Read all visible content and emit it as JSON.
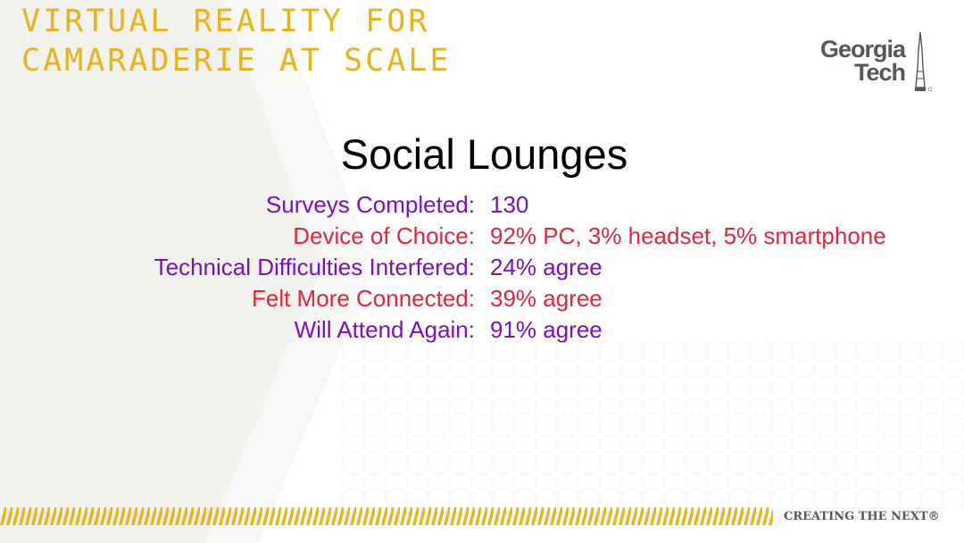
{
  "header": {
    "title_line1": "VIRTUAL REALITY FOR",
    "title_line2": "CAMARADERIE AT SCALE"
  },
  "logo": {
    "line1": "Georgia",
    "line2": "Tech",
    "icon": "tech-tower-icon"
  },
  "slide": {
    "title": "Social Lounges"
  },
  "stats": [
    {
      "label": "Surveys Completed:",
      "value": "130",
      "color": "#7b10c0"
    },
    {
      "label": "Device of Choice:",
      "value": "92% PC, 3% headset, 5% smartphone",
      "color": "#e0273b"
    },
    {
      "label": "Technical Difficulties Interfered:",
      "value": "24% agree",
      "color": "#7b10c0"
    },
    {
      "label": "Felt More Connected:",
      "value": "39% agree",
      "color": "#e0273b"
    },
    {
      "label": "Will Attend Again:",
      "value": "91% agree",
      "color": "#7b10c0"
    }
  ],
  "footer": {
    "tagline": "CREATING THE NEXT®"
  },
  "colors": {
    "accent_gold": "#e8b41c",
    "logo_gray": "#54585a",
    "purple": "#7b10c0",
    "red": "#e0273b",
    "background_shape": "#f1f1ee"
  }
}
